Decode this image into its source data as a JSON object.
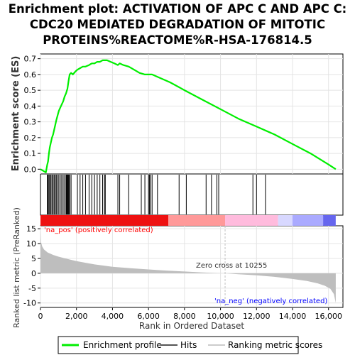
{
  "title_lines": [
    "Enrichment plot: ACTIVATION OF APC C AND APC C:",
    "CDC20 MEDIATED DEGRADATION OF MITOTIC",
    "PROTEINS%REACTOME%R-HSA-176814.5"
  ],
  "colors": {
    "enrichment_line": "#00ee00",
    "hits": "#000000",
    "pos_label": "#ff0000",
    "neg_label": "#0000ff",
    "metric_fill": "#bebebe",
    "zero_line": "#c0c0c0"
  },
  "chart_data": [
    {
      "type": "line",
      "panel": "enrichment",
      "ylabel": "Enrichment score (ES)",
      "xlim": [
        0,
        16800
      ],
      "ylim": [
        -0.03,
        0.73
      ],
      "yticks": [
        "0.0",
        "0.1",
        "0.2",
        "0.3",
        "0.4",
        "0.5",
        "0.6",
        "0.7"
      ],
      "ytick_values": [
        0,
        0.1,
        0.2,
        0.3,
        0.4,
        0.5,
        0.6,
        0.7
      ],
      "grid": true,
      "series": [
        {
          "name": "Enrichment profile",
          "x": [
            0,
            150,
            300,
            380,
            420,
            470,
            520,
            580,
            640,
            700,
            760,
            820,
            880,
            950,
            1020,
            1100,
            1180,
            1260,
            1340,
            1420,
            1500,
            1560,
            1620,
            1700,
            1800,
            1950,
            2050,
            2200,
            2350,
            2500,
            2700,
            2850,
            3000,
            3150,
            3300,
            3450,
            3600,
            3700,
            3900,
            4100,
            4300,
            4400,
            4600,
            4900,
            5200,
            5500,
            5800,
            6000,
            6200,
            6600,
            7200,
            8000,
            9000,
            10000,
            11000,
            12000,
            13000,
            14000,
            15000,
            16000,
            16400
          ],
          "y": [
            0.0,
            -0.01,
            -0.02,
            0.03,
            0.05,
            0.1,
            0.14,
            0.17,
            0.2,
            0.22,
            0.25,
            0.28,
            0.31,
            0.34,
            0.37,
            0.39,
            0.41,
            0.43,
            0.46,
            0.48,
            0.51,
            0.56,
            0.6,
            0.61,
            0.6,
            0.62,
            0.63,
            0.64,
            0.65,
            0.65,
            0.66,
            0.67,
            0.67,
            0.68,
            0.68,
            0.69,
            0.69,
            0.69,
            0.68,
            0.67,
            0.66,
            0.67,
            0.66,
            0.65,
            0.63,
            0.61,
            0.6,
            0.6,
            0.6,
            0.58,
            0.55,
            0.5,
            0.44,
            0.38,
            0.32,
            0.27,
            0.22,
            0.16,
            0.1,
            0.03,
            0.0
          ]
        }
      ]
    },
    {
      "type": "scatter",
      "panel": "hits",
      "series": [
        {
          "name": "Hits",
          "x": [
            380,
            420,
            470,
            520,
            580,
            640,
            700,
            760,
            820,
            880,
            950,
            1020,
            1100,
            1180,
            1260,
            1340,
            1420,
            1460,
            1500,
            1540,
            1580,
            1620,
            1700,
            2050,
            2200,
            2350,
            2500,
            2700,
            2850,
            3000,
            3150,
            3300,
            3450,
            3550,
            3600,
            4300,
            4400,
            4900,
            5600,
            5800,
            6000,
            6050,
            6100,
            6200,
            6500,
            7700,
            8100,
            9200,
            9500,
            9800,
            9900,
            11800,
            12000,
            12500
          ]
        }
      ]
    },
    {
      "type": "heatmap",
      "panel": "rank-colorbar",
      "series": [
        {
          "name": "Ranking metric scores",
          "x": [
            0,
            7100,
            10255,
            13200,
            14000,
            15700,
            16400
          ],
          "colors": [
            "#ee1111",
            "#ff9999",
            "#ffbbdd",
            "#d8d8ff",
            "#aaaaff",
            "#6666ee",
            "#2222cc"
          ]
        }
      ]
    },
    {
      "type": "area",
      "panel": "metric",
      "xlabel": "Rank in Ordered Dataset",
      "ylabel": "Ranked list metric (PreRanked)",
      "xlim": [
        0,
        16800
      ],
      "ylim": [
        -11.5,
        16
      ],
      "xticks": [
        "0",
        "2,000",
        "4,000",
        "6,000",
        "8,000",
        "10,000",
        "12,000",
        "14,000",
        "16,000"
      ],
      "xtick_values": [
        0,
        2000,
        4000,
        6000,
        8000,
        10000,
        12000,
        14000,
        16000
      ],
      "yticks": [
        "15",
        "10",
        "5",
        "0",
        "-5",
        "-10"
      ],
      "ytick_values": [
        15,
        10,
        5,
        0,
        -5,
        -10
      ],
      "grid": true,
      "series": [
        {
          "name": "Ranking metric scores",
          "x": [
            0,
            30,
            100,
            200,
            400,
            700,
            1000,
            1500,
            2000,
            3000,
            4000,
            5000,
            6000,
            7000,
            8000,
            9000,
            10000,
            10255,
            11000,
            12000,
            13000,
            14000,
            14800,
            15400,
            15800,
            16100,
            16300,
            16400
          ],
          "values": [
            15,
            10.5,
            9,
            8,
            7,
            6.2,
            5.6,
            4.8,
            4.1,
            3.0,
            2.2,
            1.7,
            1.3,
            0.9,
            0.6,
            0.3,
            0.05,
            0,
            -0.3,
            -0.7,
            -1.2,
            -1.9,
            -2.6,
            -3.4,
            -4.2,
            -5.2,
            -7,
            -10
          ]
        }
      ],
      "annotations": [
        "'na_pos' (positively correlated)",
        "Zero cross at 10255",
        "'na_neg' (negatively correlated)"
      ]
    }
  ],
  "legend": {
    "placement": "bottom",
    "items": [
      "Enrichment profile",
      "Hits",
      "Ranking metric scores"
    ]
  }
}
